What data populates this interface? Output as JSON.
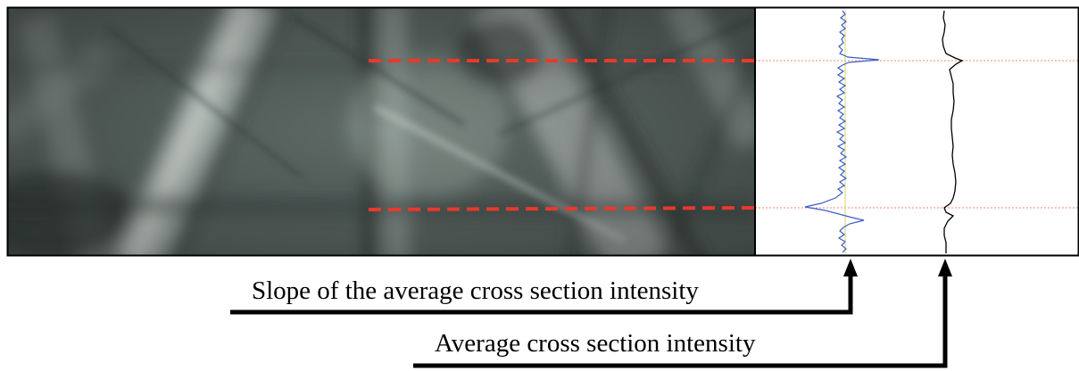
{
  "figure": {
    "labels": {
      "slope": "Slope of the average cross section intensity",
      "average": "Average cross section intensity"
    },
    "colors": {
      "band_marker": "#e8392b",
      "guide_line": "#f3a08e",
      "slope_curve": "#3a5cc8",
      "slope_zero_line": "#d8d070",
      "intensity_curve": "#000000",
      "arrow": "#000000",
      "pattern_background": "#5e6a66"
    }
  }
}
